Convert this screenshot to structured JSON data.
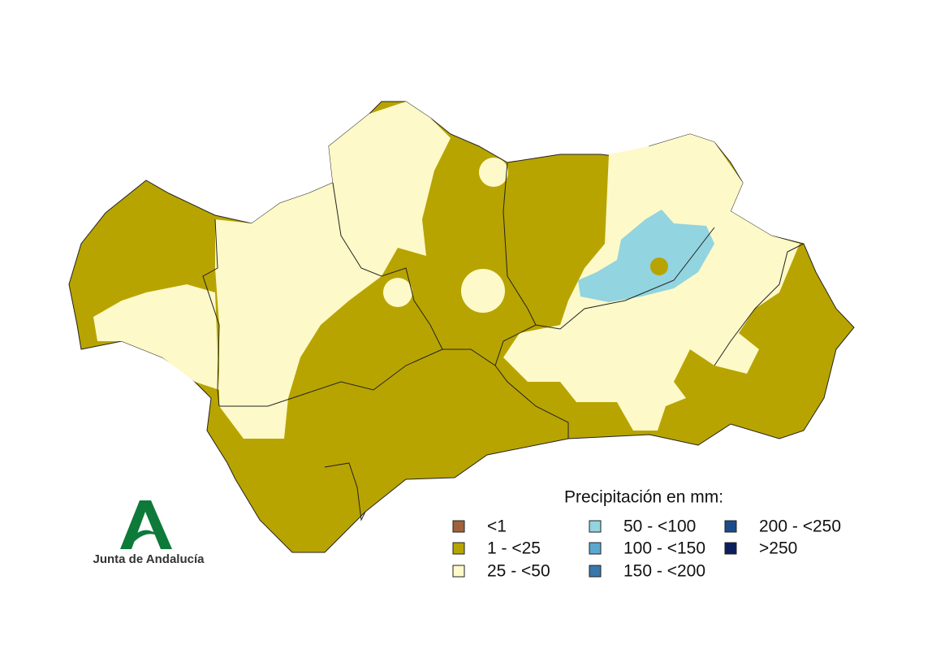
{
  "legend": {
    "title": "Precipitación en mm:",
    "items": [
      {
        "label": "<1",
        "color": "#a0623a"
      },
      {
        "label": "1 - <25",
        "color": "#b8a400"
      },
      {
        "label": "25 - <50",
        "color": "#fdf9c8"
      },
      {
        "label": "50 - <100",
        "color": "#92d4df"
      },
      {
        "label": "100 - <150",
        "color": "#5ba8cf"
      },
      {
        "label": "150 - <200",
        "color": "#3a77aa"
      },
      {
        "label": "200 - <250",
        "color": "#1b4b8b"
      },
      {
        "label": ">250",
        "color": "#0a1f5c"
      }
    ]
  },
  "logo": {
    "text": "Junta de Andalucía"
  }
}
